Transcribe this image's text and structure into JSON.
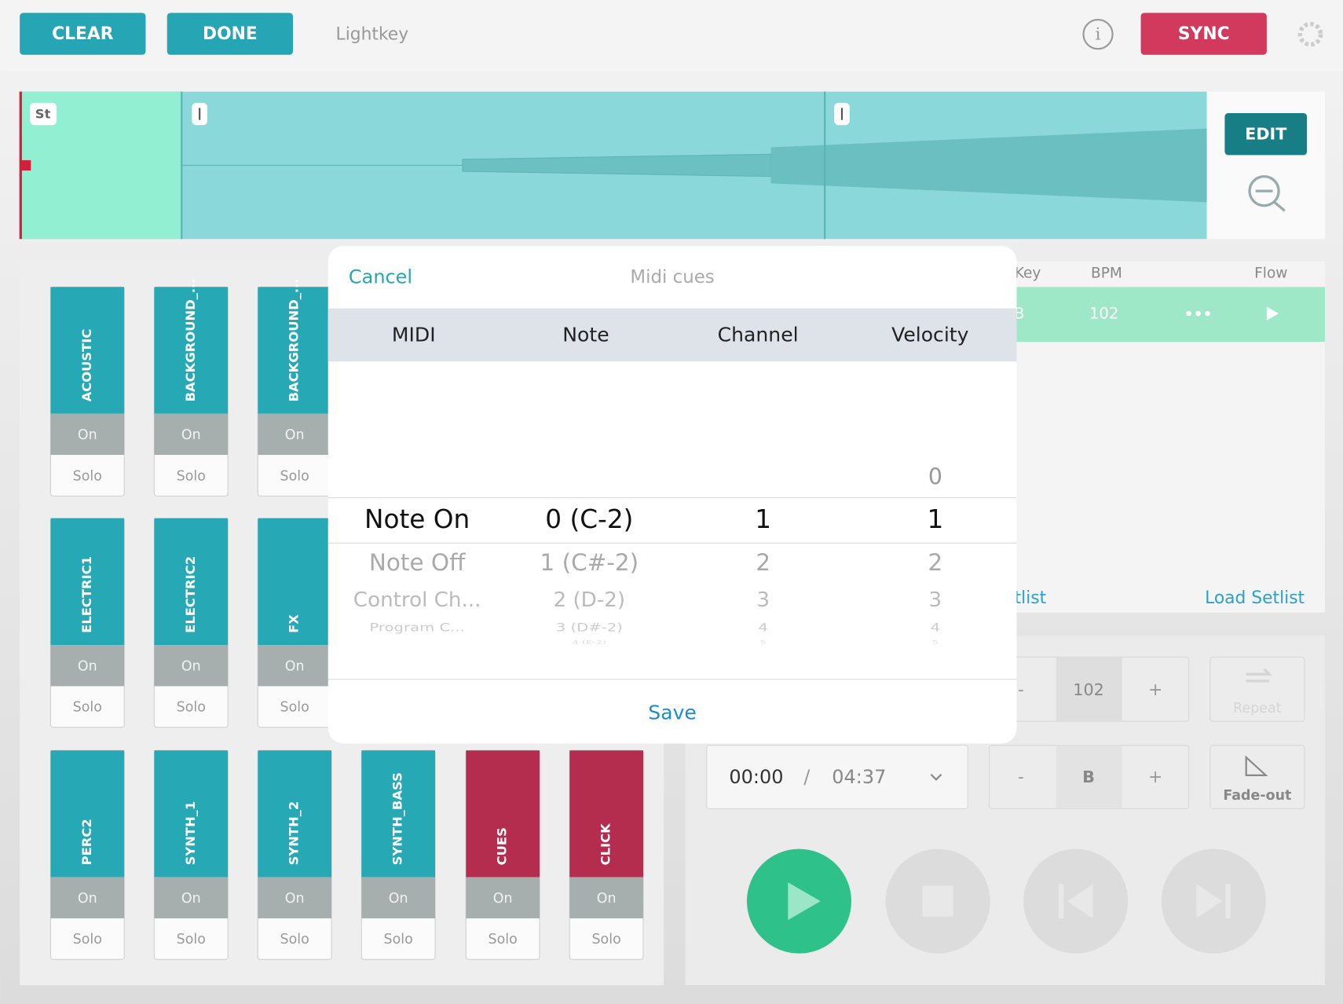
{
  "toolbar": {
    "clear": "CLEAR",
    "done": "DONE",
    "app": "Lightkey",
    "sync": "SYNC"
  },
  "waveform": {
    "start_marker": "St",
    "edit": "EDIT"
  },
  "tracks": [
    {
      "name": "ACOUSTIC",
      "on": "On",
      "solo": "Solo",
      "color": "#26a8b5"
    },
    {
      "name": "BACKGROUND_...",
      "on": "On",
      "solo": "Solo",
      "color": "#26a8b5"
    },
    {
      "name": "BACKGROUND_...",
      "on": "On",
      "solo": "Solo",
      "color": "#26a8b5"
    },
    {
      "name": "ELECTRIC1",
      "on": "On",
      "solo": "Solo",
      "color": "#26a8b5"
    },
    {
      "name": "ELECTRIC2",
      "on": "On",
      "solo": "Solo",
      "color": "#26a8b5"
    },
    {
      "name": "FX",
      "on": "On",
      "solo": "Solo",
      "color": "#26a8b5"
    },
    {
      "name": "PERC2",
      "on": "On",
      "solo": "Solo",
      "color": "#26a8b5"
    },
    {
      "name": "SYNTH_1",
      "on": "On",
      "solo": "Solo",
      "color": "#26a8b5"
    },
    {
      "name": "SYNTH_2",
      "on": "On",
      "solo": "Solo",
      "color": "#26a8b5"
    },
    {
      "name": "SYNTH_BASS",
      "on": "On",
      "solo": "Solo",
      "color": "#26a8b5"
    },
    {
      "name": "CUES",
      "on": "On",
      "solo": "Solo",
      "color": "#b52d4e"
    },
    {
      "name": "CLICK",
      "on": "On",
      "solo": "Solo",
      "color": "#b52d4e"
    }
  ],
  "setlist": {
    "headers": [
      "Key",
      "BPM",
      "Flow"
    ],
    "row": {
      "key": "B",
      "bpm": "102"
    },
    "setlist_partial": "tlist",
    "load": "Load Setlist"
  },
  "transport": {
    "tempo": {
      "minus": "-",
      "value": "102",
      "plus": "+"
    },
    "repeat": "Repeat",
    "time": {
      "current": "00:00",
      "sep": "/",
      "total": "04:37"
    },
    "key": {
      "minus": "-",
      "value": "B",
      "plus": "+"
    },
    "fade": "Fade-out"
  },
  "dialog": {
    "cancel": "Cancel",
    "title": "Midi cues",
    "columns": [
      "MIDI",
      "Note",
      "Channel",
      "Velocity"
    ],
    "picker": [
      [
        "Note On",
        "Note Off",
        "Control Ch...",
        "Program C..."
      ],
      [
        "0 (C-2)",
        "1 (C#-2)",
        "2 (D-2)",
        "3 (D#-2)",
        "4 (E-2)"
      ],
      [
        "1",
        "2",
        "3",
        "4",
        "5"
      ],
      [
        "0",
        "1",
        "2",
        "3",
        "4",
        "5"
      ]
    ],
    "save": "Save"
  }
}
